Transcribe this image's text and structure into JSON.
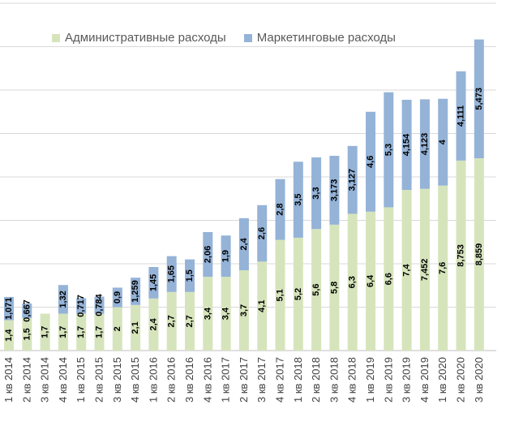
{
  "chart_data": {
    "type": "bar",
    "stacked": true,
    "title": "",
    "xlabel": "",
    "ylabel": "",
    "ylim": [
      0,
      16
    ],
    "grid": true,
    "legend_position": "top",
    "categories": [
      "1 кв 2014",
      "2 кв 2014",
      "3 кв 2014",
      "4 кв 2014",
      "1 кв 2015",
      "2 кв 2015",
      "3 кв 2015",
      "4 кв 2015",
      "1 кв 2016",
      "2 кв 2016",
      "3 кв 2016",
      "4 кв 2016",
      "1 кв 2017",
      "2 кв 2017",
      "3 кв 2017",
      "4 кв 2017",
      "1 кв 2018",
      "2 кв 2018",
      "3 кв 2018",
      "4 кв 2018",
      "1 кв 2019",
      "2 кв 2019",
      "3 кв 2019",
      "4 кв 2019",
      "1 кв 2020",
      "2 кв 2020",
      "3 кв 2020"
    ],
    "series": [
      {
        "name": "Административные расходы",
        "color": "#d6e4bc",
        "values": [
          1.4,
          1.5,
          1.7,
          1.7,
          1.7,
          1.7,
          2,
          2.1,
          2.4,
          2.7,
          2.7,
          3.4,
          3.4,
          3.7,
          4.1,
          5.1,
          5.2,
          5.6,
          5.8,
          6.3,
          6.4,
          6.6,
          7.4,
          7.452,
          7.6,
          8.753,
          8.859
        ],
        "labels": [
          "1,4",
          "1,5",
          "1,7",
          "1,7",
          "1,7",
          "1,7",
          "2",
          "2,1",
          "2,4",
          "2,7",
          "2,7",
          "3,4",
          "3,4",
          "3,7",
          "4,1",
          "5,1",
          "5,2",
          "5,6",
          "5,8",
          "6,3",
          "6,4",
          "6,6",
          "7,4",
          "7,452",
          "7,6",
          "8,753",
          "8,859"
        ]
      },
      {
        "name": "Маркетинговые расходы",
        "color": "#95b3d7",
        "values": [
          1.071,
          0.667,
          0,
          1.32,
          0.717,
          0.784,
          0.9,
          1.259,
          1.45,
          1.65,
          1.5,
          2.06,
          1.9,
          2.4,
          2.6,
          2.8,
          3.5,
          3.3,
          3.173,
          3.127,
          4.6,
          5.3,
          4.154,
          4.123,
          4,
          4.111,
          5.473
        ],
        "labels": [
          "1,071",
          "0,667",
          "",
          "1,32",
          "0,717",
          "0,784",
          "0,9",
          "1,259",
          "1,45",
          "1,65",
          "1,5",
          "2,06",
          "1,9",
          "2,4",
          "2,6",
          "2,8",
          "3,5",
          "3,3",
          "3,173",
          "3,127",
          "4,6",
          "5,3",
          "4,154",
          "4,123",
          "4",
          "4,111",
          "5,473"
        ]
      }
    ]
  }
}
